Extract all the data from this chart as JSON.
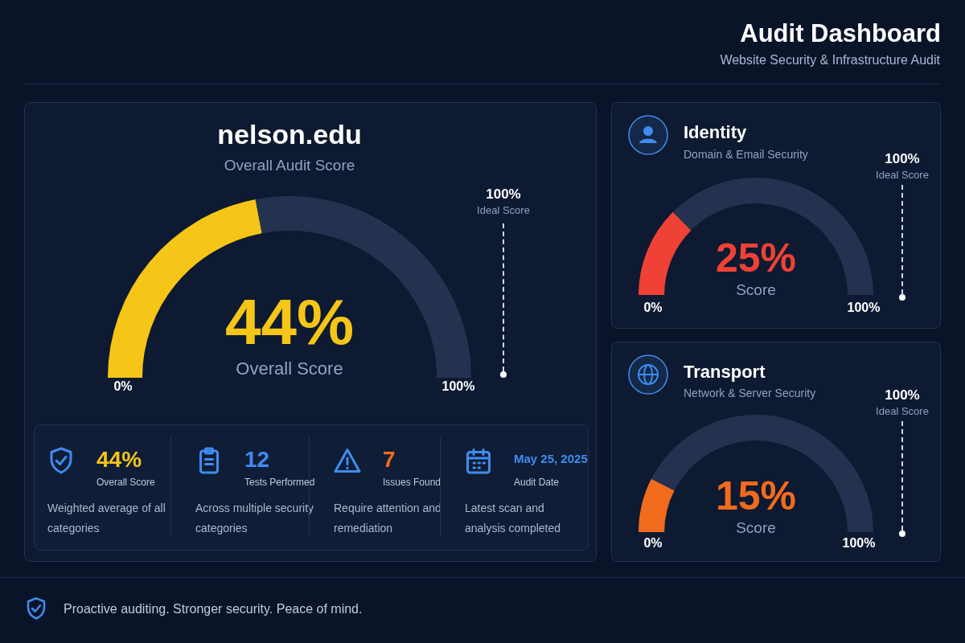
{
  "chart_data": [
    {
      "type": "other",
      "title": "Audit Dashboard",
      "subtitle": "Website Security & Infrastructure Audit",
      "annotations": [
        "Proactive auditing. Stronger security. Peace of mind."
      ]
    },
    {
      "type": "donut",
      "title": "nelson.edu",
      "subtitle": "Overall Audit Score",
      "categories": [
        null,
        null
      ],
      "values": [
        44,
        56
      ],
      "colors": [
        "#f5c518",
        "#24324f"
      ],
      "legend": false,
      "annotations": [
        "44%",
        "Overall Score",
        "0%",
        "100%",
        "100%",
        "Ideal Score"
      ]
    },
    {
      "type": "other",
      "annotations": [
        "44%",
        "Overall Score",
        "Weighted average of all categories",
        "12",
        "Tests Performed",
        "Across multiple security categories",
        "7",
        "Issues Found",
        "Require attention and remediation",
        "May 25, 2025",
        "Audit Date",
        "Latest scan and analysis completed"
      ]
    },
    {
      "type": "donut",
      "title": "Identity",
      "subtitle": "Domain & Email Security",
      "categories": [
        null,
        null
      ],
      "values": [
        25,
        75
      ],
      "colors": [
        "#ef4136",
        "#24324f"
      ],
      "legend": false,
      "annotations": [
        "25%",
        "Score",
        "0%",
        "100%",
        "100%",
        "Ideal Score"
      ]
    },
    {
      "type": "donut",
      "title": "Transport",
      "subtitle": "Network & Server Security",
      "categories": [
        null,
        null
      ],
      "values": [
        15,
        85
      ],
      "colors": [
        "#f26b1d",
        "#24324f"
      ],
      "legend": false,
      "annotations": [
        "15%",
        "Score",
        "0%",
        "100%",
        "100%",
        "Ideal Score"
      ]
    }
  ]
}
